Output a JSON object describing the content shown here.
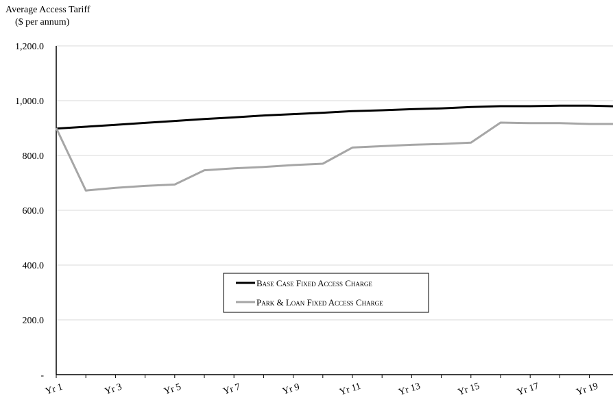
{
  "chart_data": {
    "type": "line",
    "title": "",
    "ylabel_line1": "Average Access Tariff",
    "ylabel_line2": "($ per annum)",
    "xlabel": "",
    "ylim": [
      0,
      1200
    ],
    "yticks": [
      0,
      200,
      400,
      600,
      800,
      1000,
      1200
    ],
    "ytick_labels": [
      "-",
      "200.0",
      "400.0",
      "600.0",
      "800.0",
      "1,000.0",
      "1,200.0"
    ],
    "categories": [
      "Yr 1",
      "Yr 2",
      "Yr 3",
      "Yr 4",
      "Yr 5",
      "Yr 6",
      "Yr 7",
      "Yr 8",
      "Yr 9",
      "Yr 10",
      "Yr 11",
      "Yr 12",
      "Yr 13",
      "Yr 14",
      "Yr 15",
      "Yr 16",
      "Yr 17",
      "Yr 18",
      "Yr 19",
      "Yr 20"
    ],
    "shown_tick_labels": [
      "Yr 1",
      "Yr 3",
      "Yr 5",
      "Yr 7",
      "Yr 9",
      "Yr 11",
      "Yr 13",
      "Yr 15",
      "Yr 17",
      "Yr 19"
    ],
    "grid": true,
    "legend_position": "center-bottom",
    "series": [
      {
        "name": "Base Case Fixed Access Charge",
        "color": "#000000",
        "values": [
          898,
          905,
          912,
          919,
          926,
          933,
          939,
          946,
          951,
          956,
          962,
          965,
          969,
          972,
          977,
          980,
          980,
          982,
          982,
          979
        ]
      },
      {
        "name": "Park & Loan Fixed Access Charge",
        "color": "#a6a6a6",
        "values": [
          900,
          672,
          682,
          689,
          694,
          746,
          753,
          758,
          765,
          770,
          829,
          834,
          839,
          842,
          847,
          920,
          918,
          918,
          915,
          915
        ]
      }
    ]
  }
}
